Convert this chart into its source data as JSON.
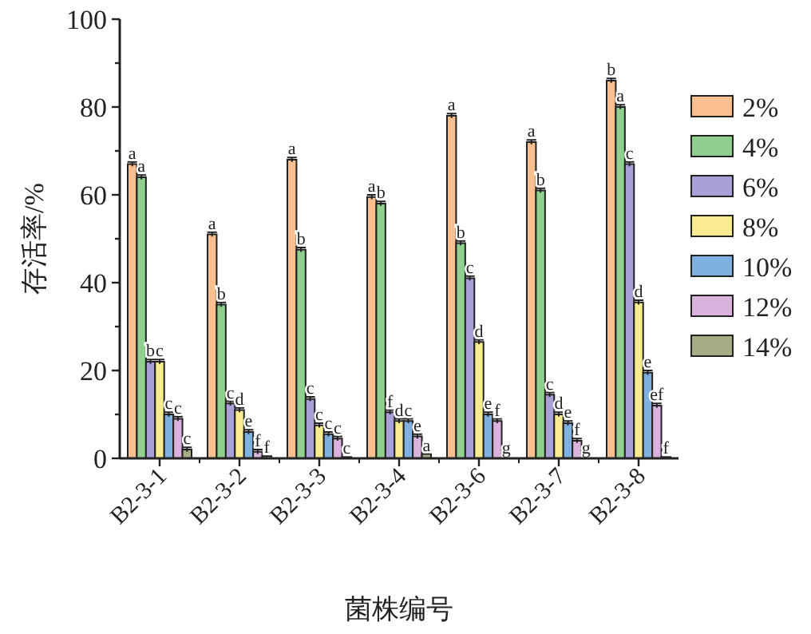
{
  "chart_data": {
    "type": "bar",
    "xlabel": "菌株编号",
    "ylabel": "存活率/%",
    "categories": [
      "B2-3-1",
      "B2-3-2",
      "B2-3-3",
      "B2-3-4",
      "B2-3-6",
      "B2-3-7",
      "B2-3-8"
    ],
    "ylim": [
      0,
      100
    ],
    "yticks": [
      0,
      {
        "value": 10,
        "label": null
      },
      20,
      {
        "value": 30,
        "label": null
      },
      40,
      {
        "value": 50,
        "label": null
      },
      60,
      {
        "value": 70,
        "label": null
      },
      80,
      {
        "value": 90,
        "label": null
      },
      100
    ],
    "grid": false,
    "legend": "right",
    "series": [
      {
        "name": "2%",
        "color": "#f9bf8f",
        "values": [
          67,
          51,
          68,
          59.5,
          78,
          72,
          86
        ],
        "errors": [
          0.5,
          0.5,
          0.5,
          0.5,
          0.5,
          0.5,
          0.5
        ],
        "value_labels": [
          "a",
          "a",
          "a",
          "a",
          "a",
          "a",
          "b"
        ]
      },
      {
        "name": "4%",
        "color": "#8fd08f",
        "values": [
          64,
          35,
          47.5,
          58,
          49,
          61,
          80
        ],
        "errors": [
          0.5,
          0.5,
          0.5,
          0.5,
          0.5,
          0.5,
          0.5
        ],
        "value_labels": [
          "a",
          "b",
          "b",
          "b",
          "b",
          "b",
          "a"
        ]
      },
      {
        "name": "6%",
        "color": "#a9a0d8",
        "values": [
          22,
          12.5,
          13.5,
          10.5,
          41,
          14.5,
          67
        ],
        "errors": [
          0.5,
          0.5,
          0.5,
          0.5,
          0.5,
          0.5,
          0.5
        ],
        "value_labels": [
          "b",
          "c",
          "c",
          "f",
          "c",
          "c",
          "c"
        ]
      },
      {
        "name": "8%",
        "color": "#fbeb90",
        "values": [
          22,
          11,
          7.5,
          8.5,
          26.5,
          10,
          35.5
        ],
        "errors": [
          0.5,
          0.5,
          0.5,
          0.5,
          0.5,
          0.5,
          0.5
        ],
        "value_labels": [
          "c",
          "d",
          "c",
          "d",
          "d",
          "d",
          "d"
        ]
      },
      {
        "name": "10%",
        "color": "#7fb0e0",
        "values": [
          10,
          6,
          5.5,
          8.5,
          10,
          8,
          19.5
        ],
        "errors": [
          0.5,
          0.5,
          0.5,
          0.5,
          0.5,
          0.5,
          0.5
        ],
        "value_labels": [
          "c",
          "e",
          "c",
          "c",
          "e",
          "e",
          "e"
        ]
      },
      {
        "name": "12%",
        "color": "#d9b3dd",
        "values": [
          9,
          1.5,
          4.5,
          5,
          8.5,
          4,
          12
        ],
        "errors": [
          0.5,
          0.5,
          0.5,
          0.5,
          0.5,
          0.5,
          0.5
        ],
        "value_labels": [
          "c",
          "f",
          "c",
          "e",
          "f",
          "f",
          "ef"
        ]
      },
      {
        "name": "14%",
        "color": "#a6ad86",
        "values": [
          2,
          0.5,
          0.3,
          1,
          0.3,
          0.3,
          0.3
        ],
        "errors": [
          0.5,
          null,
          null,
          null,
          null,
          null,
          null
        ],
        "value_labels": [
          "c",
          "f",
          "c",
          "a",
          "g",
          "g",
          "f"
        ]
      }
    ]
  }
}
